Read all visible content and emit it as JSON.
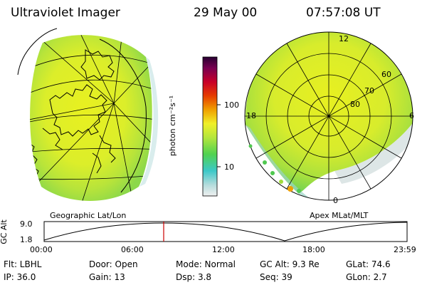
{
  "header": {
    "title": "Ultraviolet Imager",
    "date": "29 May 00",
    "time": "07:57:08 UT"
  },
  "colorbar": {
    "unit_label": "photon cm⁻²s⁻¹",
    "ticks": [
      "100",
      "10"
    ],
    "colors": [
      "#f0f0f0",
      "#b4dcdc",
      "#3cc8c8",
      "#50d250",
      "#b4e63c",
      "#f0f028",
      "#f0a000",
      "#e63c00",
      "#c80028",
      "#780050",
      "#280032"
    ]
  },
  "left_map": {
    "label": "Geographic Lat/Lon"
  },
  "right_map": {
    "label": "Apex MLat/MLT",
    "mlt_labels": [
      "12",
      "18",
      "6",
      "0"
    ],
    "lat_labels": [
      "60",
      "70",
      "80"
    ]
  },
  "altitude_plot": {
    "axis_label": "GC Alt",
    "y_ticks": [
      "9.0",
      "1.8"
    ],
    "x_ticks": [
      "00:00",
      "06:00",
      "12:00",
      "18:00",
      "23:59"
    ],
    "marker_color": "#cc0000"
  },
  "status": {
    "filter": "Flt: LBHL",
    "door": "Door: Open",
    "mode": "Mode: Normal",
    "gc_alt": "GC Alt: 9.3 Re",
    "glat": "GLat:  74.6",
    "ip": "IP: 36.0",
    "gain": "Gain: 13",
    "dsp": "Dsp:    3.8",
    "seq": "Seq: 39",
    "glon": "GLon:   2.7"
  }
}
